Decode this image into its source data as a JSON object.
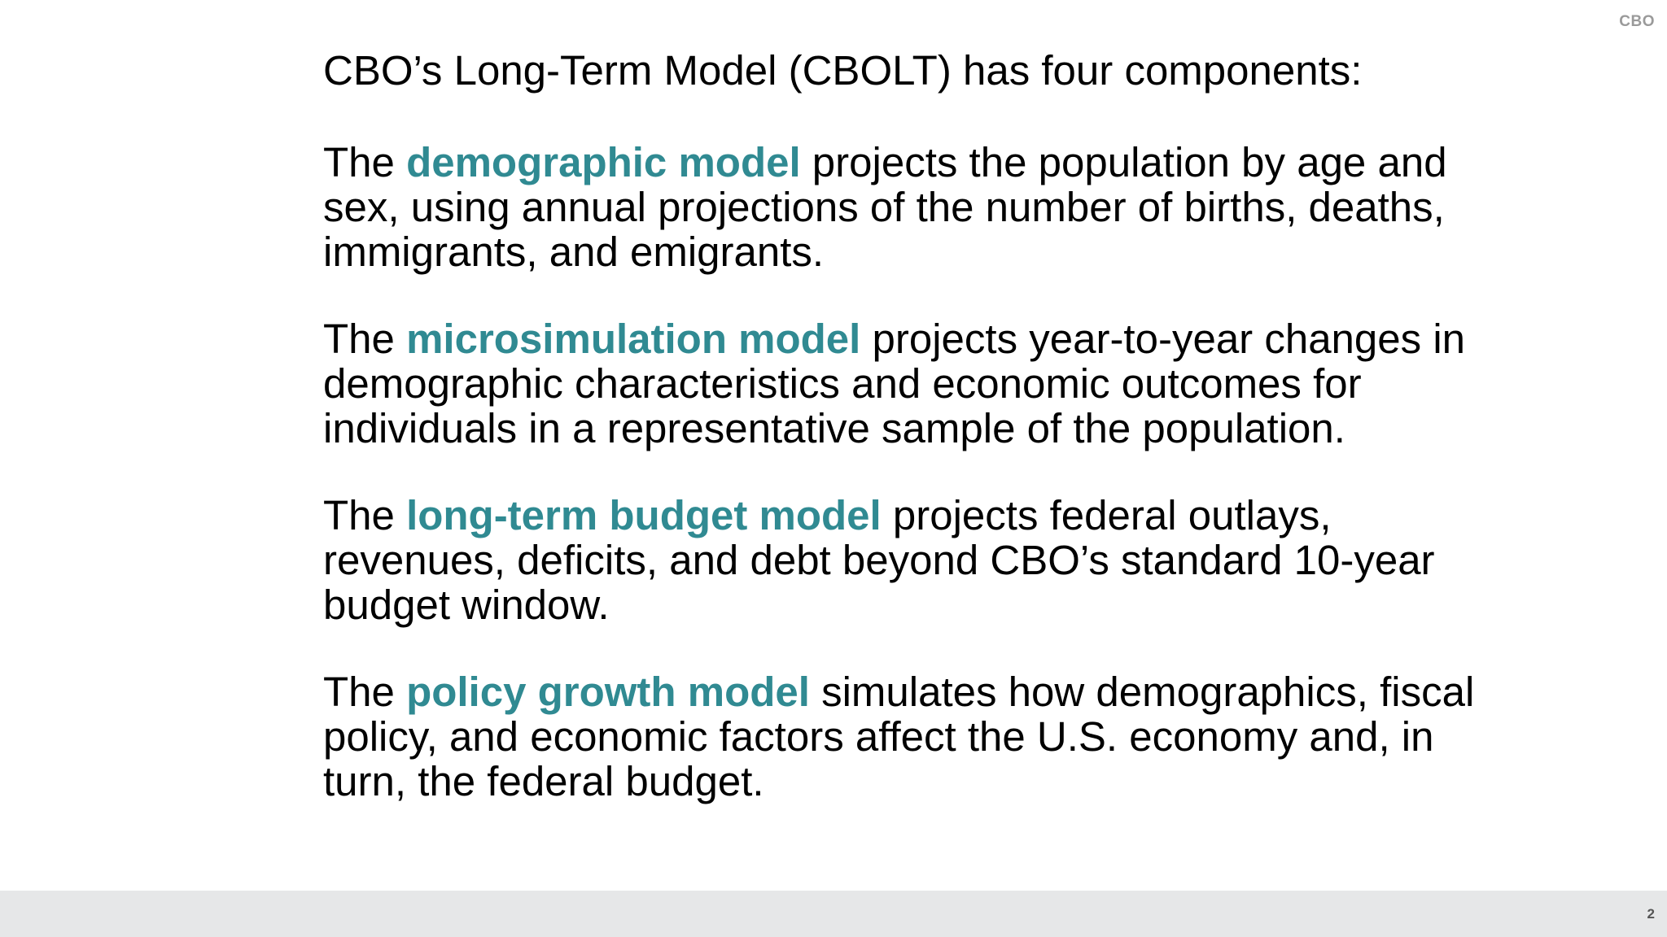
{
  "header": {
    "logo_text": "CBO"
  },
  "slide": {
    "heading": "CBO’s Long-Term Model (CBOLT) has four components:",
    "components": [
      {
        "lead": "The ",
        "term": "demographic model",
        "text": " projects the population by age and sex, using annual projections of the number of births, deaths, immigrants, and emigrants."
      },
      {
        "lead": "The ",
        "term": "microsimulation model",
        "text": " projects year-to-year changes in demographic characteristics and economic outcomes for individuals in a representative sample of the population."
      },
      {
        "lead": "The ",
        "term": "long-term budget model",
        "text": " projects federal outlays, revenues, deficits, and debt beyond CBO’s standard 10-year budget window."
      },
      {
        "lead": "The ",
        "term": "policy growth model",
        "text": " simulates how demographics, fiscal policy, and economic factors affect the U.S. economy and, in turn, the federal budget."
      }
    ]
  },
  "footer": {
    "page_number": "2"
  },
  "colors": {
    "term_accent": "#308a92",
    "footer_bar": "#e6e7e8",
    "logo_gray": "#9a9a9a"
  }
}
